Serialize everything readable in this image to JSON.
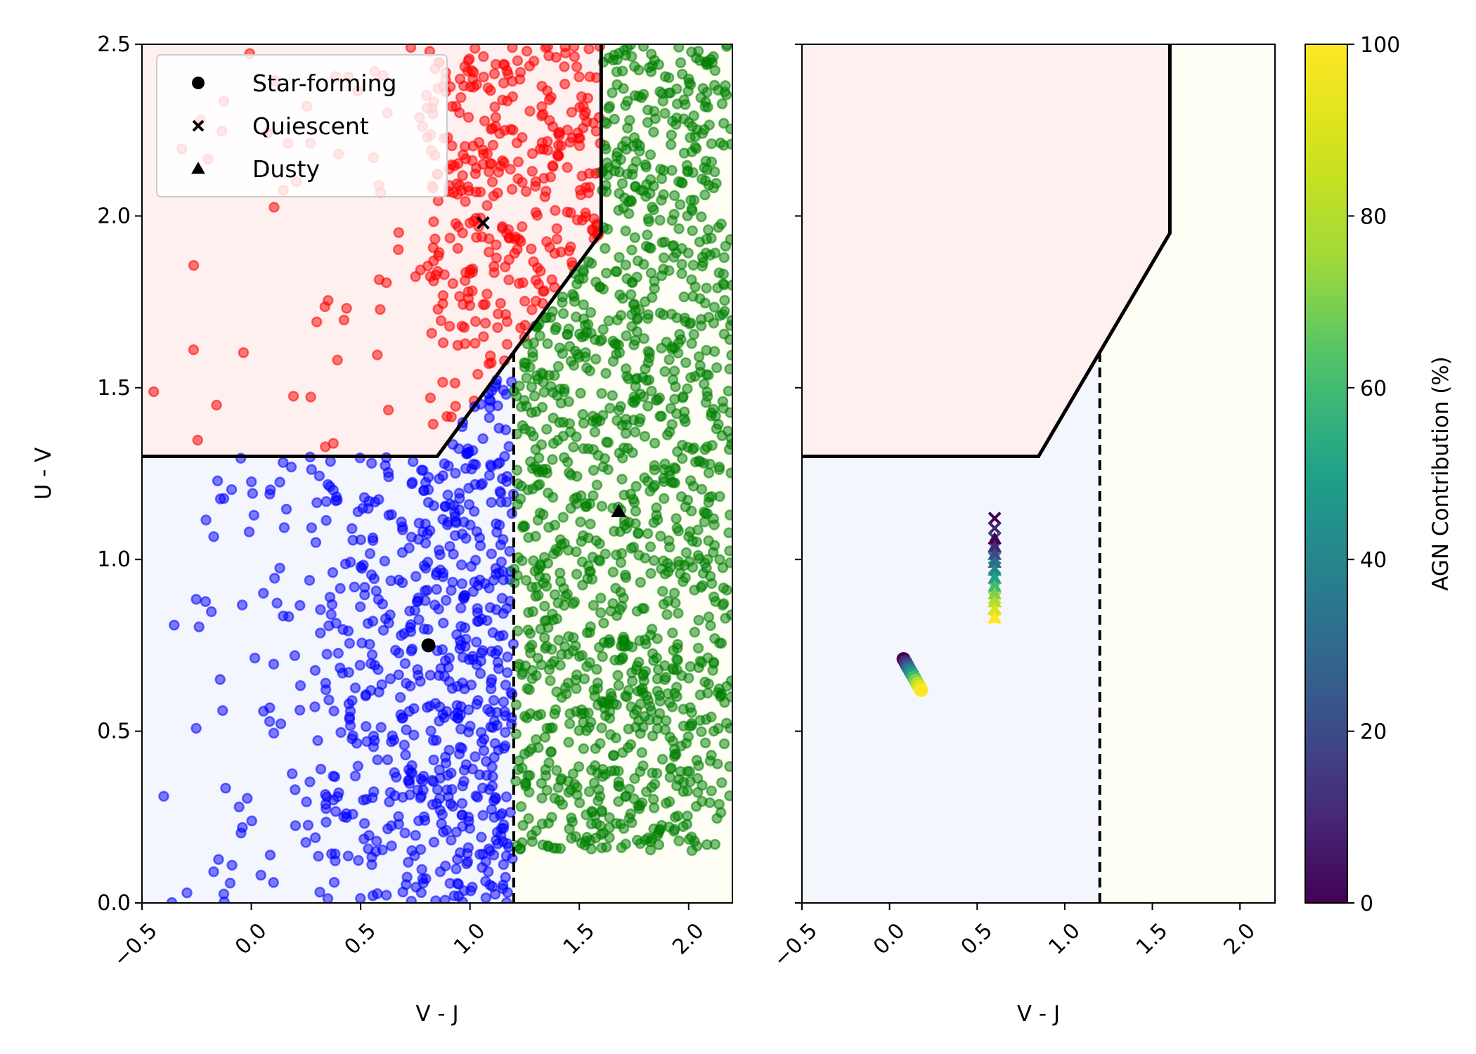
{
  "chart_data": [
    {
      "type": "scatter",
      "panel": "left",
      "xlabel": "V - J",
      "ylabel": "U - V",
      "xlim": [
        -0.5,
        2.2
      ],
      "ylim": [
        0,
        2.5
      ],
      "xticks": [
        "−0.5",
        "0.0",
        "0.5",
        "1.0",
        "1.5",
        "2.0"
      ],
      "xtick_values": [
        -0.5,
        0.0,
        0.5,
        1.0,
        1.5,
        2.0
      ],
      "yticks": [
        "0.0",
        "0.5",
        "1.0",
        "1.5",
        "2.0",
        "2.5"
      ],
      "ytick_values": [
        0.0,
        0.5,
        1.0,
        1.5,
        2.0,
        2.5
      ],
      "grid": false,
      "legend_position": "top-left",
      "legend": [
        {
          "label": "Star-forming",
          "marker": "circle"
        },
        {
          "label": "Quiescent",
          "marker": "x"
        },
        {
          "label": "Dusty",
          "marker": "triangle"
        }
      ],
      "regions": [
        {
          "name": "quiescent",
          "color": "#fff0f0",
          "boundary": [
            [
              -0.5,
              1.3
            ],
            [
              0.85,
              1.3
            ],
            [
              1.6,
              1.95
            ],
            [
              1.6,
              2.5
            ],
            [
              -0.5,
              2.5
            ]
          ]
        },
        {
          "name": "star-forming",
          "color": "#f4f6fe",
          "boundary": [
            [
              -0.5,
              0
            ],
            [
              1.2,
              0
            ],
            [
              1.2,
              1.6
            ],
            [
              0.85,
              1.3
            ],
            [
              -0.5,
              1.3
            ]
          ]
        },
        {
          "name": "dusty",
          "color": "#fffef5",
          "boundary": [
            [
              1.2,
              0
            ],
            [
              2.2,
              0
            ],
            [
              2.2,
              2.5
            ],
            [
              1.6,
              2.5
            ],
            [
              1.6,
              1.95
            ],
            [
              1.2,
              1.6
            ]
          ]
        }
      ],
      "series": [
        {
          "marker": "circle",
          "color": "#ff0000",
          "count": 400,
          "description_region": "quiescent",
          "sample": [
            [
              -0.48,
              1.46
            ],
            [
              -0.45,
              1.68
            ],
            [
              -0.43,
              1.95
            ],
            [
              -0.1,
              1.85
            ],
            [
              -0.1,
              1.54
            ],
            [
              0.25,
              1.62
            ],
            [
              0.36,
              1.63
            ],
            [
              0.5,
              1.51
            ],
            [
              0.65,
              1.5
            ],
            [
              0.8,
              1.86
            ],
            [
              1.05,
              2.17
            ],
            [
              1.3,
              1.9
            ]
          ]
        },
        {
          "marker": "circle",
          "color": "#0000ff",
          "count": 700,
          "description_region": "star-forming",
          "sample": [
            [
              -0.47,
              1.17
            ],
            [
              -0.45,
              0.88
            ],
            [
              -0.43,
              0.64
            ],
            [
              -0.42,
              0.4
            ],
            [
              -0.36,
              0.2
            ],
            [
              -0.34,
              0.04
            ],
            [
              -0.2,
              1.25
            ],
            [
              -0.1,
              1.26
            ],
            [
              0.1,
              1.08
            ],
            [
              0.5,
              0.5
            ],
            [
              0.9,
              0.7
            ],
            [
              1.1,
              0.3
            ]
          ]
        },
        {
          "marker": "circle",
          "color": "#008000",
          "count": 1300,
          "description_region": "dusty",
          "sample": [
            [
              1.25,
              0.4
            ],
            [
              1.4,
              0.25
            ],
            [
              1.6,
              0.5
            ],
            [
              1.8,
              1.0
            ],
            [
              2.0,
              1.5
            ],
            [
              2.15,
              2.4
            ],
            [
              1.7,
              2.2
            ],
            [
              1.9,
              0.6
            ],
            [
              2.1,
              0.35
            ],
            [
              1.5,
              1.3
            ]
          ]
        }
      ],
      "reference_points": [
        {
          "label": "Star-forming",
          "marker": "circle",
          "x": 0.81,
          "y": 0.75
        },
        {
          "label": "Quiescent",
          "marker": "x",
          "x": 1.06,
          "y": 1.98
        },
        {
          "label": "Dusty",
          "marker": "triangle",
          "x": 1.68,
          "y": 1.14
        }
      ],
      "boundary_lines": [
        {
          "style": "solid",
          "points": [
            [
              -0.5,
              1.3
            ],
            [
              0.85,
              1.3
            ],
            [
              1.6,
              1.95
            ],
            [
              1.6,
              2.5
            ]
          ]
        },
        {
          "style": "dashed",
          "points": [
            [
              1.2,
              0
            ],
            [
              1.2,
              1.6
            ]
          ]
        }
      ]
    },
    {
      "type": "scatter",
      "panel": "right",
      "xlabel": "V - J",
      "ylabel": "",
      "xlim": [
        -0.5,
        2.2
      ],
      "ylim": [
        0,
        2.5
      ],
      "xticks": [
        "−0.5",
        "0.0",
        "0.5",
        "1.0",
        "1.5",
        "2.0"
      ],
      "xtick_values": [
        -0.5,
        0.0,
        0.5,
        1.0,
        1.5,
        2.0
      ],
      "grid": false,
      "colormap": "viridis",
      "colorbar": {
        "label": "AGN Contribution (%)",
        "range": [
          0,
          100
        ],
        "ticks": [
          "0",
          "20",
          "40",
          "60",
          "80",
          "100"
        ],
        "tick_values": [
          0,
          20,
          40,
          60,
          80,
          100
        ]
      },
      "series": [
        {
          "marker": "circle",
          "track": "star-forming",
          "start": {
            "x": 0.08,
            "y": 0.71
          },
          "end": {
            "x": 0.18,
            "y": 0.62
          },
          "agn_range": [
            0,
            100
          ],
          "steps": 11
        },
        {
          "marker": "x",
          "track": "quiescent",
          "start": {
            "x": 0.6,
            "y": 1.12
          },
          "end": {
            "x": 0.6,
            "y": 0.83
          },
          "agn_range": [
            0,
            100
          ],
          "steps": 11
        },
        {
          "marker": "triangle",
          "track": "dusty",
          "start": {
            "x": 0.6,
            "y": 1.06
          },
          "end": {
            "x": 0.6,
            "y": 0.83
          },
          "agn_range": [
            0,
            100
          ],
          "steps": 11
        }
      ],
      "boundary_lines": [
        {
          "style": "solid",
          "points": [
            [
              -0.5,
              1.3
            ],
            [
              0.85,
              1.3
            ],
            [
              1.6,
              1.95
            ],
            [
              1.6,
              2.5
            ]
          ]
        },
        {
          "style": "dashed",
          "points": [
            [
              1.2,
              0
            ],
            [
              1.2,
              1.6
            ]
          ]
        }
      ]
    }
  ]
}
